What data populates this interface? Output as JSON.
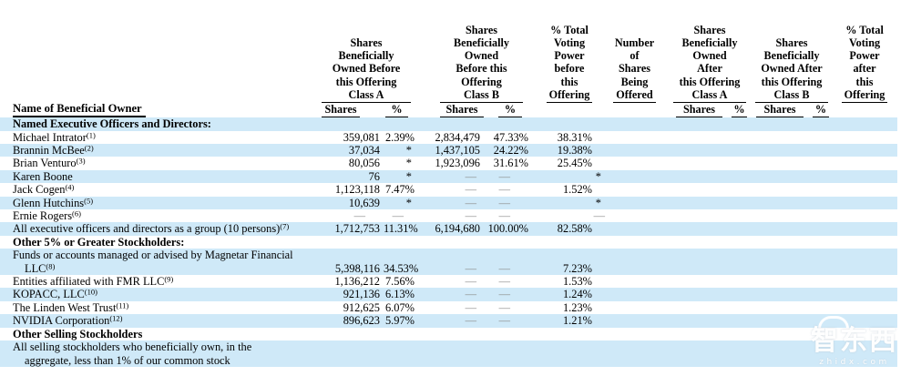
{
  "colors": {
    "row_shade": "#cfe9f8",
    "dash_gray": "#8a8a8a",
    "text": "#000000",
    "watermark_white": "#ffffff"
  },
  "watermark": {
    "logo": "智东西",
    "domain": "zhidx.com"
  },
  "table": {
    "name_header": "Name of Beneficial Owner",
    "headers": {
      "before_a": "Shares\nBeneficially\nOwned Before\nthis Offering\nClass A",
      "before_b": "Shares\nBeneficially\nOwned\nBefore this\nOffering\nClass B",
      "voting_before_top": "% Total\nVoting\nPower\nbefore\nthis",
      "voting_before_last": "Offering",
      "offered_top": "Number\nof\nShares\nBeing",
      "offered_last": "Offered",
      "after_a": "Shares\nBeneficially\nOwned\nAfter\nthis Offering\nClass A",
      "after_b": "Shares\nBeneficially\nOwned After\nthis Offering\nClass B",
      "voting_after_top": "% Total\nVoting\nPower\nafter\nthis",
      "voting_after_last": "Offering",
      "sub_shares": "Shares",
      "sub_pct": "%"
    },
    "rows": [
      {
        "name": "Named Executive Officers and Directors:",
        "sup": "",
        "bold": true,
        "shaded": true,
        "cells": [
          "",
          "",
          "",
          "",
          ""
        ]
      },
      {
        "name": "Michael Intrator",
        "sup": "(1)",
        "bold": false,
        "shaded": false,
        "cells": [
          "359,081",
          "2.39%",
          "2,834,479",
          "47.33%",
          "38.31%"
        ]
      },
      {
        "name": "Brannin McBee",
        "sup": "(2)",
        "bold": false,
        "shaded": true,
        "cells": [
          "37,034",
          "*",
          "1,437,105",
          "24.22%",
          "19.38%"
        ]
      },
      {
        "name": "Brian Venturo",
        "sup": "(3)",
        "bold": false,
        "shaded": false,
        "cells": [
          "80,056",
          "*",
          "1,923,096",
          "31.61%",
          "25.45%"
        ]
      },
      {
        "name": "Karen Boone",
        "sup": "",
        "bold": false,
        "shaded": true,
        "cells": [
          "76",
          "*",
          "—",
          "—",
          "*"
        ]
      },
      {
        "name": "Jack Cogen",
        "sup": "(4)",
        "bold": false,
        "shaded": false,
        "cells": [
          "1,123,118",
          "7.47%",
          "—",
          "—",
          "1.52%"
        ]
      },
      {
        "name": "Glenn Hutchins",
        "sup": "(5)",
        "bold": false,
        "shaded": true,
        "cells": [
          "10,639",
          "*",
          "—",
          "—",
          "*"
        ]
      },
      {
        "name": "Ernie Rogers",
        "sup": "(6)",
        "bold": false,
        "shaded": false,
        "cells": [
          "—",
          "—",
          "—",
          "—",
          "—"
        ]
      },
      {
        "name": "All executive officers and directors as a group (10 persons)",
        "sup": "(7)",
        "bold": false,
        "shaded": true,
        "cells": [
          "1,712,753",
          "11.31%",
          "6,194,680",
          "100.00%",
          "82.58%"
        ]
      },
      {
        "name": "Other 5% or Greater Stockholders:",
        "sup": "",
        "bold": true,
        "shaded": false,
        "cells": [
          "",
          "",
          "",
          "",
          ""
        ]
      },
      {
        "name": "Funds or accounts managed or advised by Magnetar Financial\nLLC",
        "sup": "(8)",
        "bold": false,
        "shaded": true,
        "cells": [
          "5,398,116",
          "34.53%",
          "—",
          "—",
          "7.23%"
        ]
      },
      {
        "name": "Entities affiliated with FMR LLC",
        "sup": "(9)",
        "bold": false,
        "shaded": false,
        "cells": [
          "1,136,212",
          "7.56%",
          "—",
          "—",
          "1.53%"
        ]
      },
      {
        "name": "KOPACC, LLC",
        "sup": "(10)",
        "bold": false,
        "shaded": true,
        "cells": [
          "921,136",
          "6.13%",
          "—",
          "—",
          "1.24%"
        ]
      },
      {
        "name": "The Linden West Trust",
        "sup": "(11)",
        "bold": false,
        "shaded": false,
        "cells": [
          "912,625",
          "6.07%",
          "—",
          "—",
          "1.23%"
        ]
      },
      {
        "name": "NVIDIA Corporation",
        "sup": "(12)",
        "bold": false,
        "shaded": true,
        "cells": [
          "896,623",
          "5.97%",
          "—",
          "—",
          "1.21%"
        ]
      },
      {
        "name": "Other Selling Stockholders",
        "sup": "",
        "bold": true,
        "shaded": false,
        "cells": [
          "",
          "",
          "",
          "",
          ""
        ]
      },
      {
        "name": "All selling stockholders who beneficially own, in the\naggregate, less than 1% of our common stock",
        "sup": "",
        "bold": false,
        "shaded": true,
        "cells": [
          "",
          "",
          "",
          "",
          ""
        ]
      }
    ]
  }
}
